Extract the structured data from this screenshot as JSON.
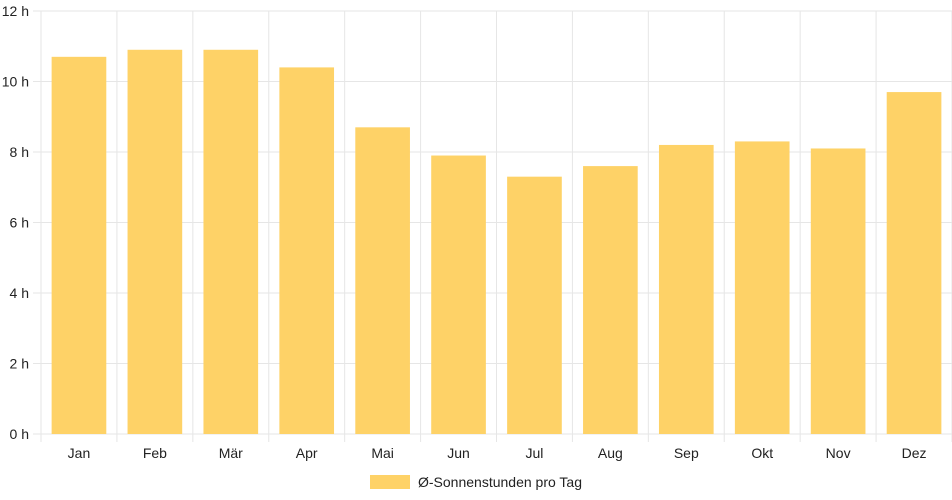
{
  "chart_data": {
    "type": "bar",
    "categories": [
      "Jan",
      "Feb",
      "Mär",
      "Apr",
      "Mai",
      "Jun",
      "Jul",
      "Aug",
      "Sep",
      "Okt",
      "Nov",
      "Dez"
    ],
    "series": [
      {
        "name": "Ø-Sonnenstunden pro Tag",
        "values": [
          10.7,
          10.9,
          10.9,
          10.4,
          8.7,
          7.9,
          7.3,
          7.6,
          8.2,
          8.3,
          8.1,
          9.7
        ]
      }
    ],
    "y_ticks": [
      "0 h",
      "2 h",
      "4 h",
      "6 h",
      "8 h",
      "10 h",
      "12 h"
    ],
    "ylim": [
      0,
      12
    ],
    "grid": true,
    "legend_position": "bottom",
    "colors": {
      "bar": "#fed267",
      "grid": "#e6e6e6"
    }
  }
}
